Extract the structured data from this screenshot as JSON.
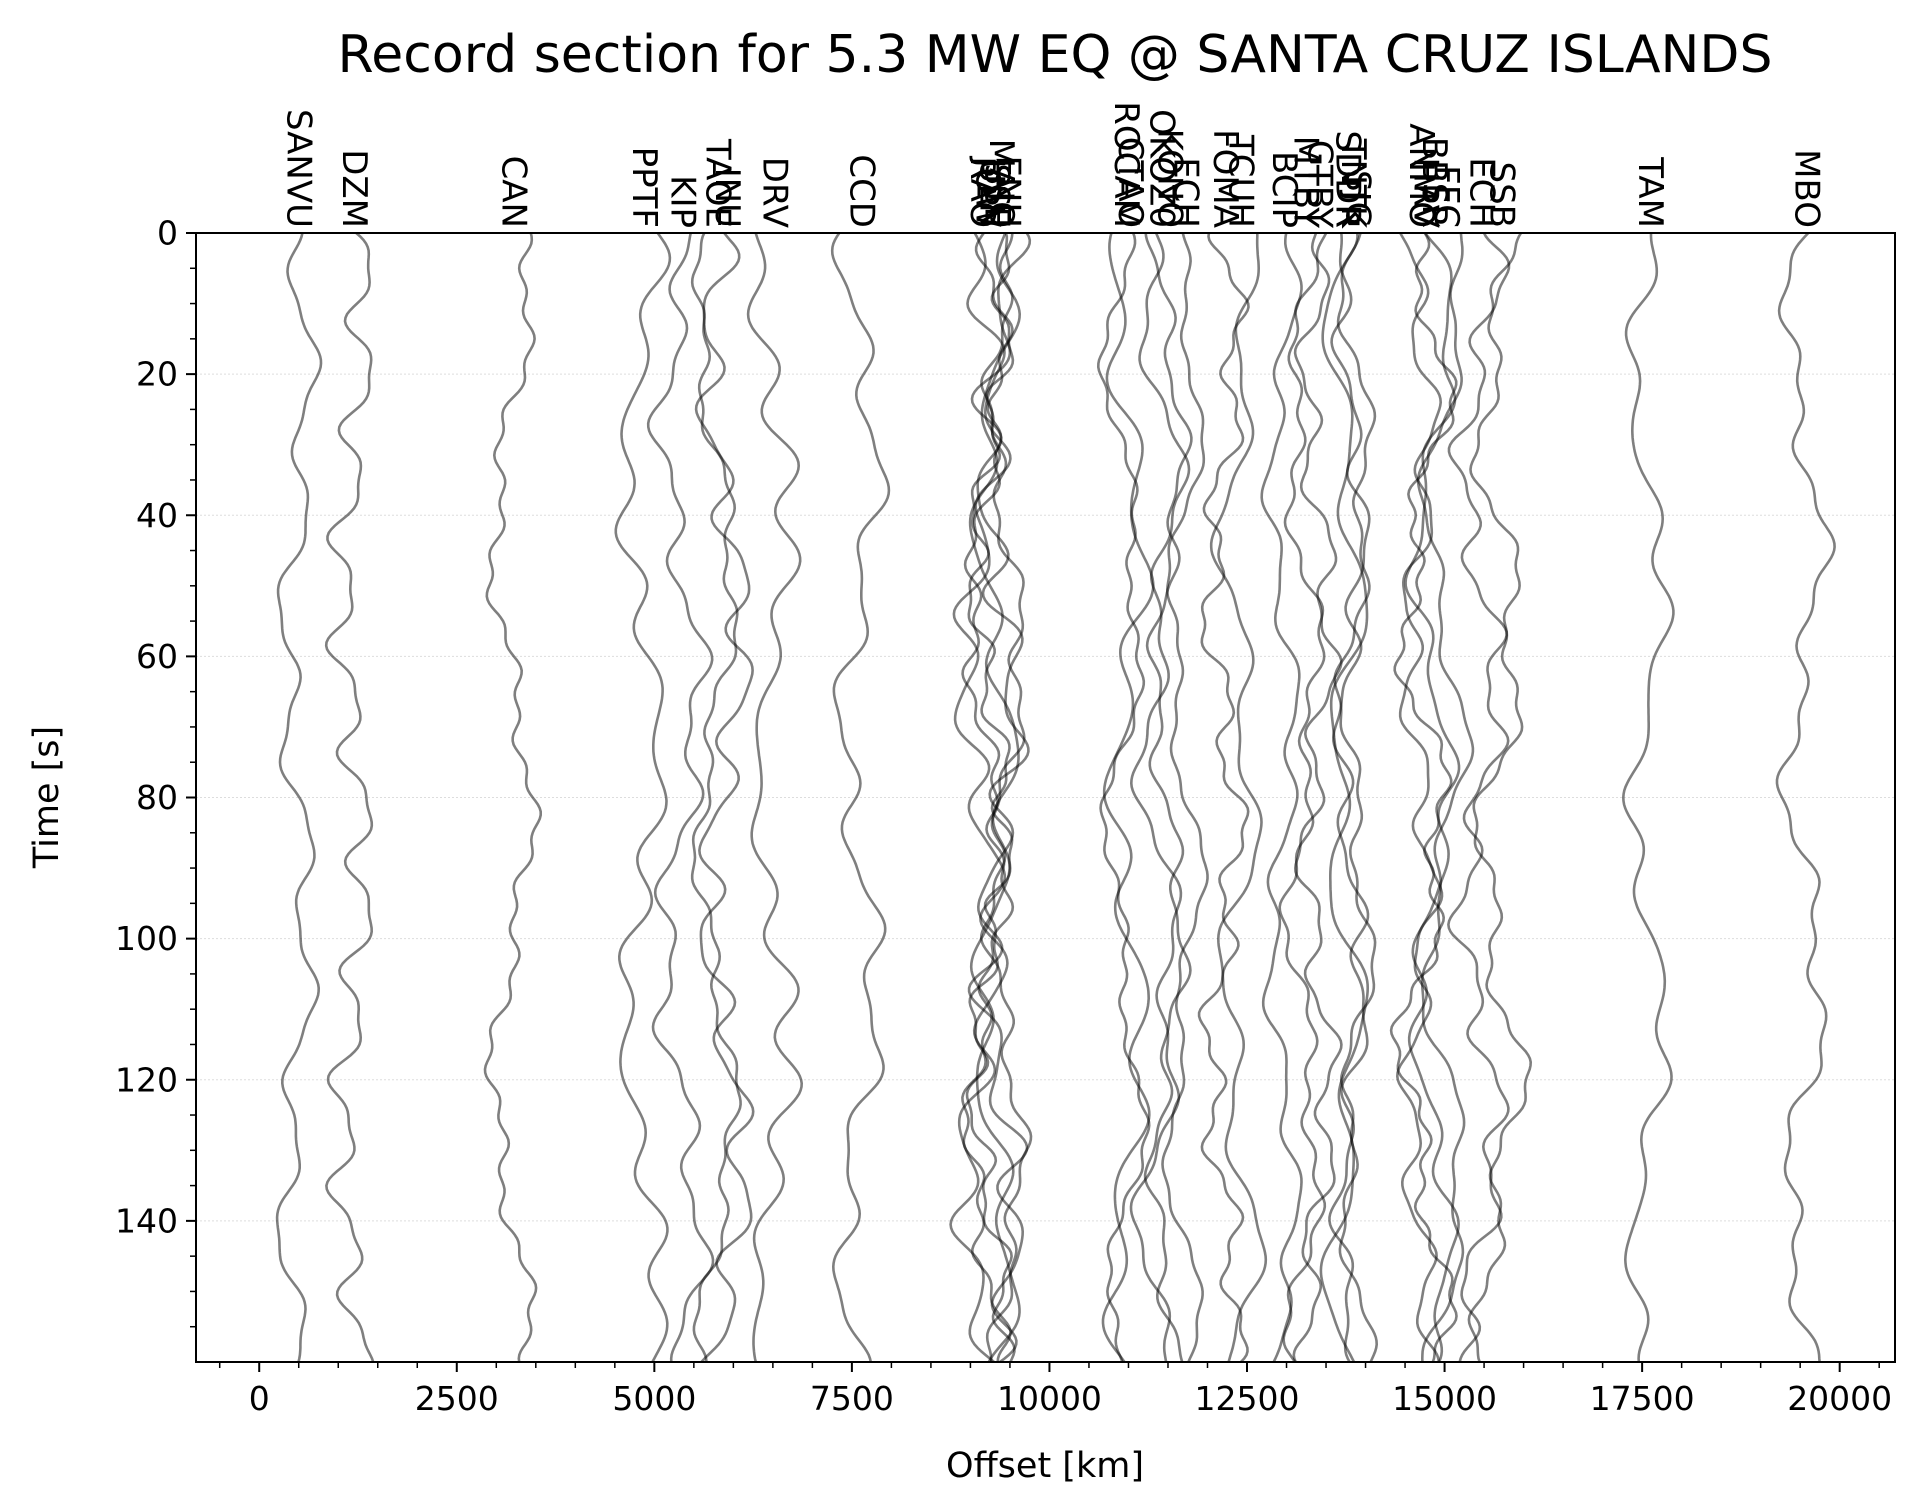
{
  "chart_data": {
    "type": "line",
    "title": "Record section for 5.3 MW EQ @ SANTA CRUZ ISLANDS",
    "xlabel": "Offset [km]",
    "ylabel": "Time [s]",
    "xlim": [
      -800,
      20700
    ],
    "ylim": [
      160,
      0
    ],
    "y_inverted": true,
    "grid": "horizontal, major y ticks",
    "legend": "none",
    "trace_color": "#000000",
    "trace_opacity": 0.5,
    "x_ticks": [
      {
        "value": 0,
        "label": "0"
      },
      {
        "value": 2500,
        "label": "2500"
      },
      {
        "value": 5000,
        "label": "5000"
      },
      {
        "value": 7500,
        "label": "7500"
      },
      {
        "value": 10000,
        "label": "10000"
      },
      {
        "value": 12500,
        "label": "12500"
      },
      {
        "value": 15000,
        "label": "15000"
      },
      {
        "value": 17500,
        "label": "17500"
      },
      {
        "value": 20000,
        "label": "20000"
      }
    ],
    "y_ticks": [
      {
        "value": 0,
        "label": "0"
      },
      {
        "value": 20,
        "label": "20"
      },
      {
        "value": 40,
        "label": "40"
      },
      {
        "value": 60,
        "label": "60"
      },
      {
        "value": 80,
        "label": "80"
      },
      {
        "value": 100,
        "label": "100"
      },
      {
        "value": 120,
        "label": "120"
      },
      {
        "value": 140,
        "label": "140"
      }
    ],
    "stations": [
      {
        "name": "SANVU",
        "offset": 480
      },
      {
        "name": "DZM",
        "offset": 1180
      },
      {
        "name": "CAN",
        "offset": 3200
      },
      {
        "name": "PPTF",
        "offset": 4850
      },
      {
        "name": "KIP",
        "offset": 5340
      },
      {
        "name": "INU",
        "offset": 5900
      },
      {
        "name": "TAOE",
        "offset": 5780
      },
      {
        "name": "DRV",
        "offset": 6500
      },
      {
        "name": "CCD",
        "offset": 7600
      },
      {
        "name": "RAO",
        "offset": 9130
      },
      {
        "name": "JOW",
        "offset": 9200
      },
      {
        "name": "ULN",
        "offset": 9250
      },
      {
        "name": "SSE",
        "offset": 9310
      },
      {
        "name": "MAJO",
        "offset": 9370
      },
      {
        "name": "ENH",
        "offset": 9450
      },
      {
        "name": "ROCAM",
        "offset": 10950
      },
      {
        "name": "CTAO",
        "offset": 11000
      },
      {
        "name": "OKOZ0",
        "offset": 11400
      },
      {
        "name": "KONO",
        "offset": 11500
      },
      {
        "name": "ECH",
        "offset": 11700
      },
      {
        "name": "FOMA",
        "offset": 12200
      },
      {
        "name": "TCUH",
        "offset": 12400
      },
      {
        "name": "BCIP",
        "offset": 12950
      },
      {
        "name": "MTBY",
        "offset": 13220
      },
      {
        "name": "GTBY",
        "offset": 13400
      },
      {
        "name": "SDDR",
        "offset": 13750
      },
      {
        "name": "TNTK",
        "offset": 13820
      },
      {
        "name": "SJG",
        "offset": 13880
      },
      {
        "name": "ANMO",
        "offset": 14680
      },
      {
        "name": "HRV",
        "offset": 14740
      },
      {
        "name": "BBSR",
        "offset": 14850
      },
      {
        "name": "FFC",
        "offset": 15000
      },
      {
        "name": "ECH",
        "offset": 15450
      },
      {
        "name": "SSB",
        "offset": 15700
      },
      {
        "name": "TAM",
        "offset": 17580
      },
      {
        "name": "MBO",
        "offset": 19560
      }
    ]
  }
}
